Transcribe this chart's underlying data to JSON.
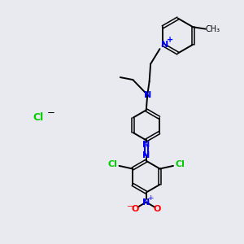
{
  "bg_color": "#e8eaf0",
  "bond_color": "#000000",
  "n_color": "#0000ff",
  "cl_color": "#00cc00",
  "o_color": "#ff0000",
  "figsize": [
    3.0,
    3.0
  ],
  "dpi": 100,
  "xlim": [
    0,
    10
  ],
  "ylim": [
    0,
    10
  ]
}
